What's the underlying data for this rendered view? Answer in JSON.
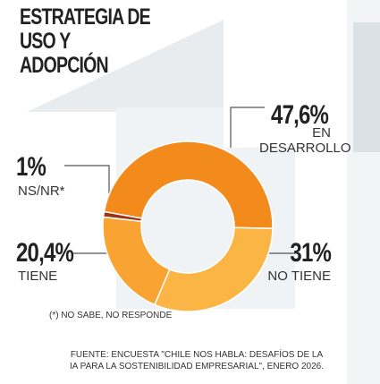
{
  "chart_data": {
    "type": "pie",
    "title": "ESTRATEGIA DE USO Y ADOPCIÓN",
    "categories": [
      "EN DESARROLLO",
      "NO TIENE",
      "TIENE",
      "NS/NR*"
    ],
    "values": [
      47.6,
      31,
      20.4,
      1
    ],
    "value_labels": [
      "47,6%",
      "31%",
      "20,4%",
      "1%"
    ],
    "colors": [
      "#f28a1c",
      "#fbb545",
      "#f8a332",
      "#9b3214"
    ],
    "footnote": "(*) NO SABE, NO RESPONDE",
    "source": "FUENTE: ENCUESTA \"CHILE NOS HABLA: DESAFÍOS DE LA IA PARA LA SOSTENIBILIDAD EMPRESARIAL\", ENERO 2026."
  }
}
